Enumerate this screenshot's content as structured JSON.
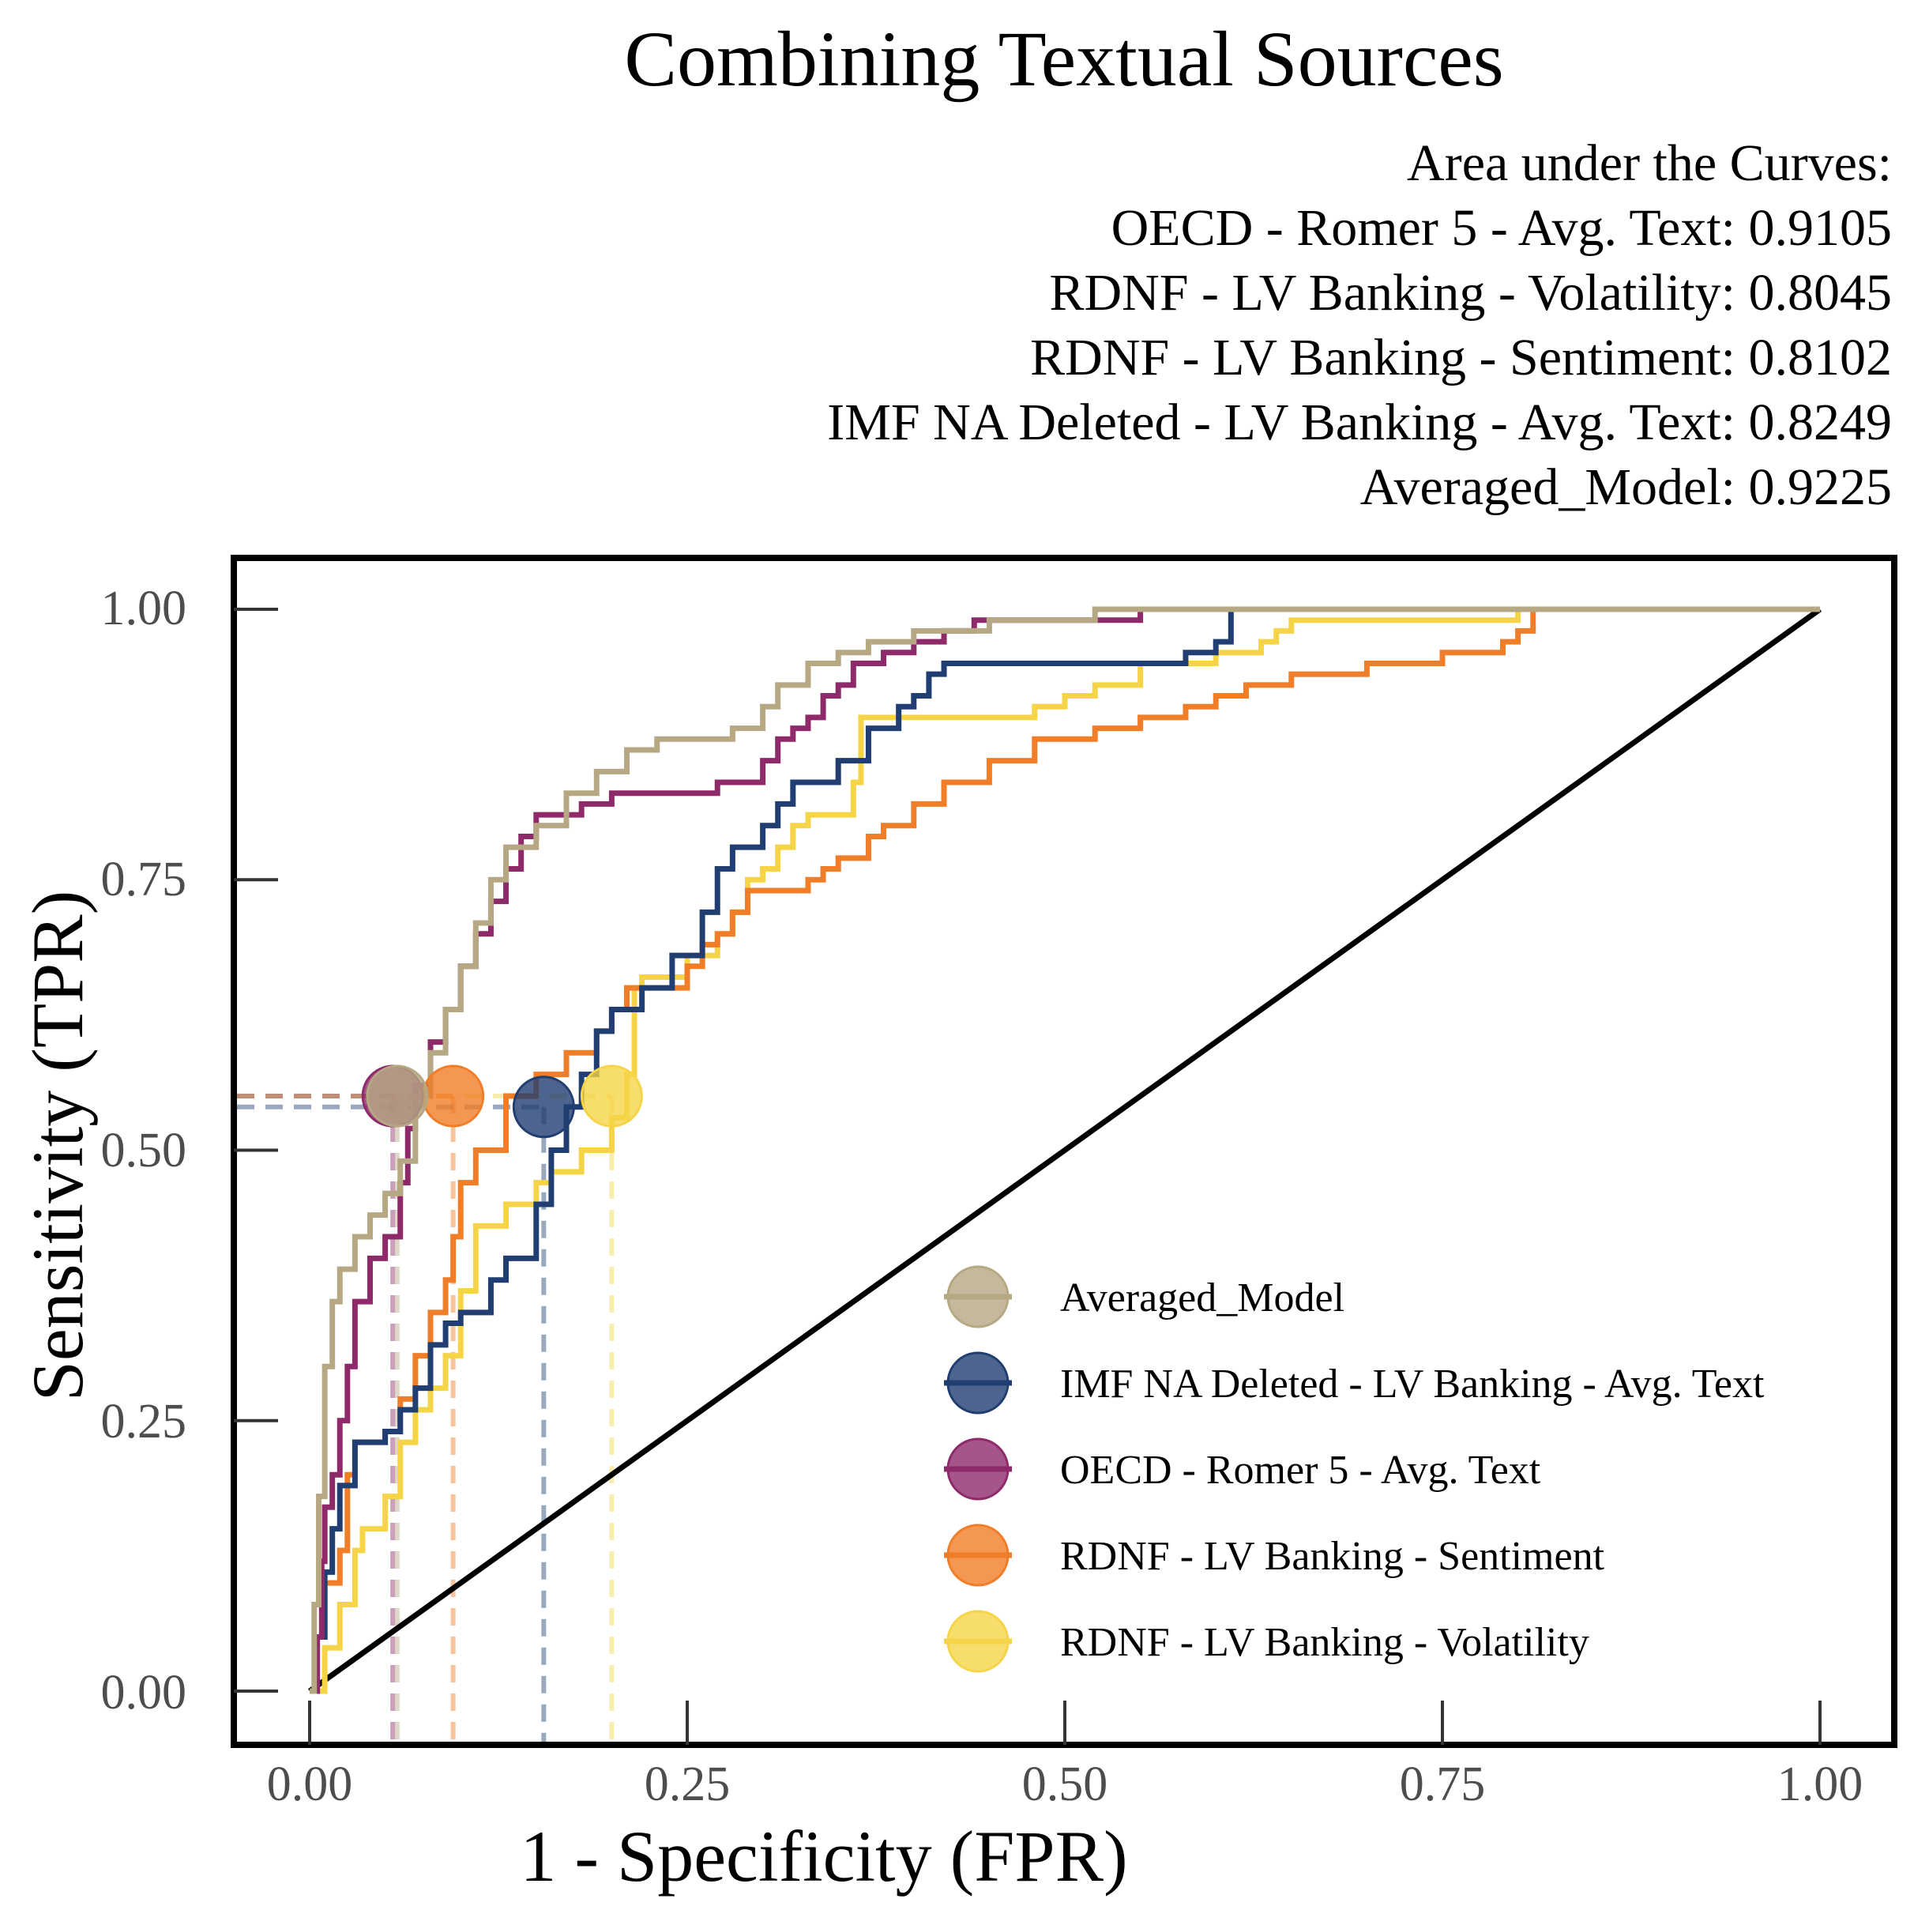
{
  "chart_data": {
    "type": "line",
    "title": "Combining Textual Sources",
    "xlabel": "1 - Specificity (FPR)",
    "ylabel": "Sensitivity (TPR)",
    "xlim": [
      0,
      1
    ],
    "ylim": [
      0,
      1
    ],
    "xticks": [
      "0.00",
      "0.25",
      "0.50",
      "0.75",
      "1.00"
    ],
    "yticks": [
      "0.00",
      "0.25",
      "0.50",
      "0.75",
      "1.00"
    ],
    "auc": {
      "heading": "Area under the Curves:",
      "lines": [
        "OECD - Romer 5 - Avg. Text: 0.9105",
        "RDNF - LV Banking - Volatility: 0.8045",
        "RDNF - LV Banking - Sentiment: 0.8102",
        "IMF NA Deleted - LV Banking - Avg. Text: 0.8249",
        "Averaged_Model: 0.9225"
      ]
    },
    "legend": {
      "position": "bottom-right"
    },
    "series": [
      {
        "name": "RDNF - LV Banking - Volatility",
        "color": "#f5d547",
        "threshold": [
          0.2,
          0.55
        ],
        "points": [
          [
            0,
            0
          ],
          [
            0.01,
            0.04
          ],
          [
            0.02,
            0.08
          ],
          [
            0.03,
            0.13
          ],
          [
            0.035,
            0.15
          ],
          [
            0.05,
            0.18
          ],
          [
            0.06,
            0.23
          ],
          [
            0.07,
            0.26
          ],
          [
            0.08,
            0.28
          ],
          [
            0.09,
            0.31
          ],
          [
            0.1,
            0.37
          ],
          [
            0.11,
            0.43
          ],
          [
            0.13,
            0.45
          ],
          [
            0.15,
            0.47
          ],
          [
            0.16,
            0.48
          ],
          [
            0.18,
            0.5
          ],
          [
            0.2,
            0.53
          ],
          [
            0.21,
            0.57
          ],
          [
            0.215,
            0.65
          ],
          [
            0.22,
            0.66
          ],
          [
            0.25,
            0.68
          ],
          [
            0.27,
            0.7
          ],
          [
            0.28,
            0.72
          ],
          [
            0.29,
            0.75
          ],
          [
            0.3,
            0.76
          ],
          [
            0.31,
            0.78
          ],
          [
            0.32,
            0.8
          ],
          [
            0.33,
            0.81
          ],
          [
            0.36,
            0.84
          ],
          [
            0.365,
            0.9
          ],
          [
            0.4,
            0.9
          ],
          [
            0.47,
            0.9
          ],
          [
            0.48,
            0.91
          ],
          [
            0.5,
            0.92
          ],
          [
            0.52,
            0.93
          ],
          [
            0.55,
            0.95
          ],
          [
            0.6,
            0.96
          ],
          [
            0.63,
            0.97
          ],
          [
            0.64,
            0.98
          ],
          [
            0.65,
            0.99
          ],
          [
            0.7,
            0.99
          ],
          [
            0.8,
            1.0
          ],
          [
            1,
            1
          ]
        ]
      },
      {
        "name": "RDNF - LV Banking - Sentiment",
        "color": "#f07d27",
        "threshold": [
          0.095,
          0.55
        ],
        "points": [
          [
            0,
            0
          ],
          [
            0.005,
            0.05
          ],
          [
            0.01,
            0.1
          ],
          [
            0.02,
            0.13
          ],
          [
            0.025,
            0.2
          ],
          [
            0.03,
            0.23
          ],
          [
            0.05,
            0.24
          ],
          [
            0.06,
            0.27
          ],
          [
            0.07,
            0.31
          ],
          [
            0.08,
            0.35
          ],
          [
            0.09,
            0.38
          ],
          [
            0.095,
            0.42
          ],
          [
            0.1,
            0.47
          ],
          [
            0.11,
            0.5
          ],
          [
            0.13,
            0.55
          ],
          [
            0.15,
            0.57
          ],
          [
            0.17,
            0.59
          ],
          [
            0.19,
            0.61
          ],
          [
            0.2,
            0.63
          ],
          [
            0.21,
            0.65
          ],
          [
            0.25,
            0.67
          ],
          [
            0.26,
            0.69
          ],
          [
            0.27,
            0.7
          ],
          [
            0.28,
            0.72
          ],
          [
            0.29,
            0.74
          ],
          [
            0.33,
            0.75
          ],
          [
            0.34,
            0.76
          ],
          [
            0.35,
            0.77
          ],
          [
            0.37,
            0.79
          ],
          [
            0.38,
            0.8
          ],
          [
            0.4,
            0.82
          ],
          [
            0.42,
            0.84
          ],
          [
            0.45,
            0.86
          ],
          [
            0.48,
            0.88
          ],
          [
            0.5,
            0.88
          ],
          [
            0.52,
            0.89
          ],
          [
            0.55,
            0.9
          ],
          [
            0.58,
            0.91
          ],
          [
            0.6,
            0.92
          ],
          [
            0.62,
            0.93
          ],
          [
            0.65,
            0.94
          ],
          [
            0.7,
            0.95
          ],
          [
            0.75,
            0.96
          ],
          [
            0.79,
            0.97
          ],
          [
            0.8,
            0.98
          ],
          [
            0.81,
            1.0
          ],
          [
            1,
            1
          ]
        ]
      },
      {
        "name": "IMF NA Deleted - LV Banking - Avg. Text",
        "color": "#203e72",
        "threshold": [
          0.155,
          0.54
        ],
        "points": [
          [
            0,
            0
          ],
          [
            0.005,
            0.05
          ],
          [
            0.01,
            0.11
          ],
          [
            0.015,
            0.15
          ],
          [
            0.02,
            0.19
          ],
          [
            0.03,
            0.23
          ],
          [
            0.05,
            0.24
          ],
          [
            0.06,
            0.26
          ],
          [
            0.07,
            0.28
          ],
          [
            0.08,
            0.32
          ],
          [
            0.09,
            0.34
          ],
          [
            0.1,
            0.35
          ],
          [
            0.12,
            0.38
          ],
          [
            0.13,
            0.4
          ],
          [
            0.15,
            0.45
          ],
          [
            0.16,
            0.5
          ],
          [
            0.17,
            0.54
          ],
          [
            0.18,
            0.57
          ],
          [
            0.19,
            0.61
          ],
          [
            0.2,
            0.63
          ],
          [
            0.22,
            0.65
          ],
          [
            0.24,
            0.68
          ],
          [
            0.26,
            0.72
          ],
          [
            0.27,
            0.76
          ],
          [
            0.28,
            0.78
          ],
          [
            0.3,
            0.8
          ],
          [
            0.31,
            0.82
          ],
          [
            0.32,
            0.84
          ],
          [
            0.35,
            0.86
          ],
          [
            0.37,
            0.89
          ],
          [
            0.39,
            0.91
          ],
          [
            0.4,
            0.92
          ],
          [
            0.41,
            0.94
          ],
          [
            0.42,
            0.95
          ],
          [
            0.5,
            0.95
          ],
          [
            0.58,
            0.96
          ],
          [
            0.6,
            0.97
          ],
          [
            0.61,
            1.0
          ],
          [
            1,
            1
          ]
        ]
      },
      {
        "name": "OECD - Romer 5 - Avg. Text",
        "color": "#8f2a6a",
        "threshold": [
          0.055,
          0.55
        ],
        "points": [
          [
            0,
            0
          ],
          [
            0.005,
            0.05
          ],
          [
            0.008,
            0.12
          ],
          [
            0.01,
            0.17
          ],
          [
            0.015,
            0.2
          ],
          [
            0.02,
            0.25
          ],
          [
            0.025,
            0.3
          ],
          [
            0.03,
            0.36
          ],
          [
            0.04,
            0.4
          ],
          [
            0.05,
            0.42
          ],
          [
            0.06,
            0.47
          ],
          [
            0.065,
            0.52
          ],
          [
            0.07,
            0.56
          ],
          [
            0.08,
            0.6
          ],
          [
            0.09,
            0.63
          ],
          [
            0.1,
            0.67
          ],
          [
            0.11,
            0.7
          ],
          [
            0.12,
            0.73
          ],
          [
            0.13,
            0.76
          ],
          [
            0.14,
            0.79
          ],
          [
            0.15,
            0.81
          ],
          [
            0.18,
            0.82
          ],
          [
            0.2,
            0.83
          ],
          [
            0.24,
            0.83
          ],
          [
            0.27,
            0.84
          ],
          [
            0.3,
            0.86
          ],
          [
            0.31,
            0.88
          ],
          [
            0.32,
            0.89
          ],
          [
            0.33,
            0.9
          ],
          [
            0.34,
            0.92
          ],
          [
            0.35,
            0.93
          ],
          [
            0.36,
            0.95
          ],
          [
            0.38,
            0.96
          ],
          [
            0.4,
            0.97
          ],
          [
            0.42,
            0.98
          ],
          [
            0.44,
            0.99
          ],
          [
            0.5,
            0.99
          ],
          [
            0.55,
            1.0
          ],
          [
            1,
            1
          ]
        ]
      },
      {
        "name": "Averaged_Model",
        "color": "#b5a883",
        "threshold": [
          0.058,
          0.55
        ],
        "points": [
          [
            0,
            0
          ],
          [
            0.003,
            0.08
          ],
          [
            0.006,
            0.18
          ],
          [
            0.01,
            0.3
          ],
          [
            0.015,
            0.36
          ],
          [
            0.02,
            0.39
          ],
          [
            0.03,
            0.42
          ],
          [
            0.04,
            0.44
          ],
          [
            0.05,
            0.46
          ],
          [
            0.06,
            0.49
          ],
          [
            0.07,
            0.55
          ],
          [
            0.08,
            0.59
          ],
          [
            0.09,
            0.63
          ],
          [
            0.1,
            0.67
          ],
          [
            0.11,
            0.71
          ],
          [
            0.12,
            0.75
          ],
          [
            0.13,
            0.78
          ],
          [
            0.15,
            0.8
          ],
          [
            0.17,
            0.83
          ],
          [
            0.19,
            0.85
          ],
          [
            0.21,
            0.87
          ],
          [
            0.23,
            0.88
          ],
          [
            0.26,
            0.88
          ],
          [
            0.28,
            0.89
          ],
          [
            0.3,
            0.91
          ],
          [
            0.31,
            0.93
          ],
          [
            0.33,
            0.95
          ],
          [
            0.35,
            0.96
          ],
          [
            0.37,
            0.97
          ],
          [
            0.4,
            0.98
          ],
          [
            0.45,
            0.99
          ],
          [
            0.5,
            0.99
          ],
          [
            0.52,
            1.0
          ],
          [
            1,
            1
          ]
        ]
      }
    ]
  }
}
